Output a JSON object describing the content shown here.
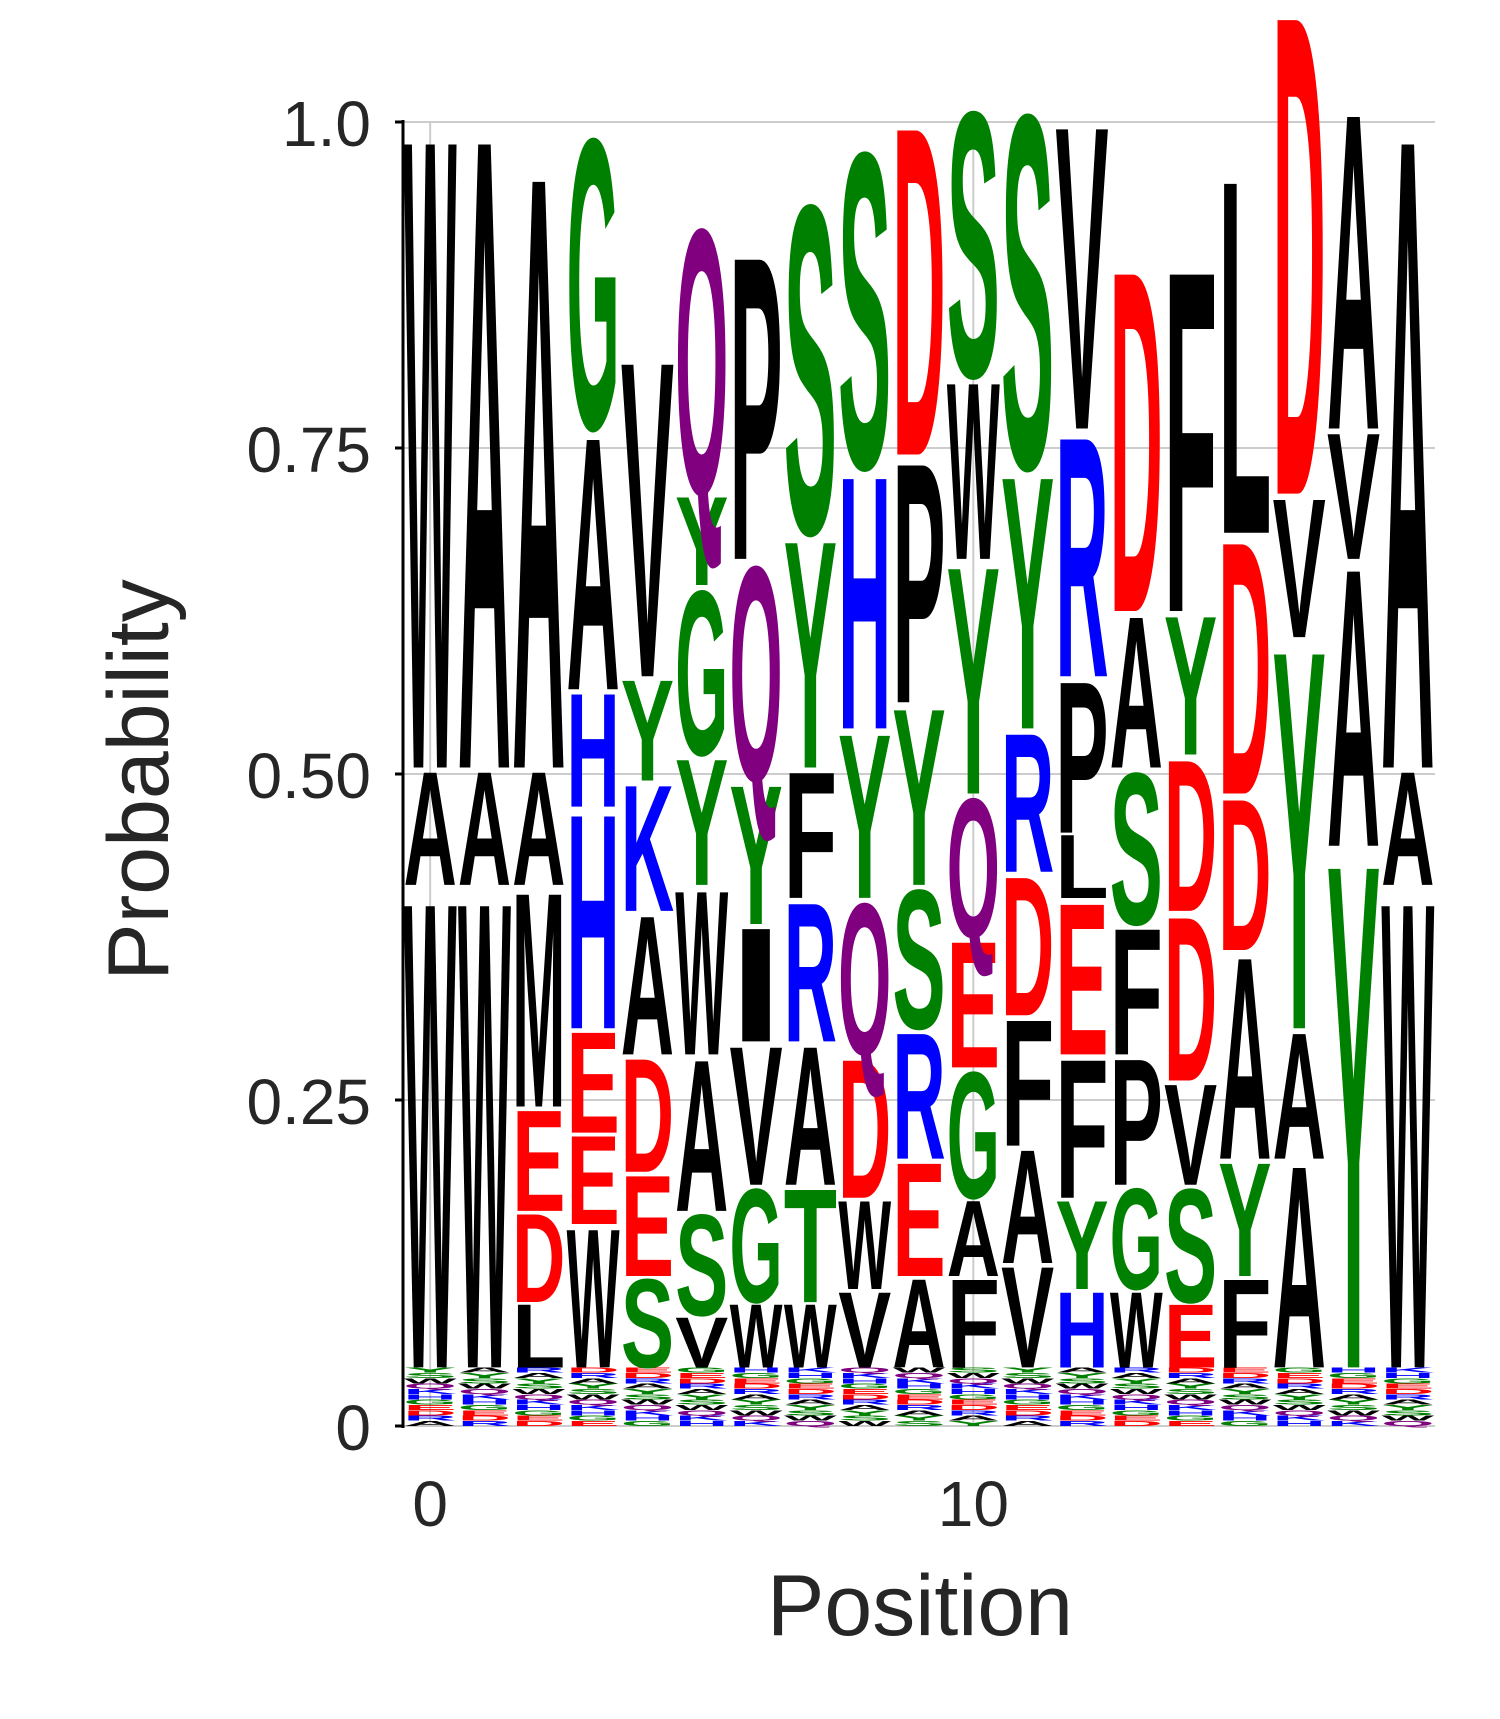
{
  "chart_data": {
    "type": "sequence-logo",
    "xlabel": "Position",
    "ylabel": "Probability",
    "xlim": [
      -0.5,
      18.5
    ],
    "ylim": [
      0,
      1
    ],
    "x_ticks": [
      {
        "value": 0,
        "label": "0"
      },
      {
        "value": 10,
        "label": "10"
      }
    ],
    "y_ticks": [
      {
        "value": 0,
        "label": "0"
      },
      {
        "value": 0.25,
        "label": "0.25"
      },
      {
        "value": 0.5,
        "label": "0.50"
      },
      {
        "value": 0.75,
        "label": "0.75"
      },
      {
        "value": 1.0,
        "label": "1.0"
      }
    ],
    "grid": true,
    "residue_colors": {
      "A": "#000000",
      "V": "#000000",
      "L": "#000000",
      "I": "#000000",
      "P": "#000000",
      "W": "#000000",
      "F": "#000000",
      "M": "#000000",
      "G": "#008000",
      "S": "#008000",
      "T": "#008000",
      "Y": "#008000",
      "C": "#008000",
      "N": "#800080",
      "Q": "#800080",
      "D": "#ff0000",
      "E": "#ff0000",
      "K": "#0000ff",
      "R": "#0000ff",
      "H": "#0000ff"
    },
    "positions": [
      {
        "x": 0,
        "stack": [
          [
            "W",
            0.37
          ],
          [
            "A",
            0.09
          ],
          [
            "W",
            0.5
          ]
        ]
      },
      {
        "x": 1,
        "stack": [
          [
            "W",
            0.37
          ],
          [
            "A",
            0.09
          ],
          [
            "A",
            0.5
          ]
        ]
      },
      {
        "x": 2,
        "stack": [
          [
            "L",
            0.05
          ],
          [
            "D",
            0.07
          ],
          [
            "E",
            0.08
          ],
          [
            "M",
            0.17
          ],
          [
            "A",
            0.09
          ],
          [
            "A",
            0.47
          ]
        ]
      },
      {
        "x": 3,
        "stack": [
          [
            "W",
            0.11
          ],
          [
            "E",
            0.07
          ],
          [
            "E",
            0.08
          ],
          [
            "H",
            0.17
          ],
          [
            "H",
            0.09
          ],
          [
            "A",
            0.2
          ],
          [
            "G",
            0.23
          ]
        ]
      },
      {
        "x": 4,
        "stack": [
          [
            "S",
            0.07
          ],
          [
            "E",
            0.08
          ],
          [
            "D",
            0.09
          ],
          [
            "A",
            0.11
          ],
          [
            "K",
            0.1
          ],
          [
            "Y",
            0.08
          ],
          [
            "V",
            0.25
          ]
        ]
      },
      {
        "x": 5,
        "stack": [
          [
            "V",
            0.04
          ],
          [
            "S",
            0.08
          ],
          [
            "A",
            0.12
          ],
          [
            "W",
            0.13
          ],
          [
            "Y",
            0.1
          ],
          [
            "G",
            0.13
          ],
          [
            "Y",
            0.07
          ],
          [
            "Q",
            0.21
          ]
        ]
      },
      {
        "x": 6,
        "stack": [
          [
            "W",
            0.05
          ],
          [
            "G",
            0.09
          ],
          [
            "V",
            0.11
          ],
          [
            "I",
            0.09
          ],
          [
            "Y",
            0.11
          ],
          [
            "Q",
            0.17
          ],
          [
            "P",
            0.24
          ]
        ]
      },
      {
        "x": 7,
        "stack": [
          [
            "W",
            0.05
          ],
          [
            "T",
            0.09
          ],
          [
            "A",
            0.11
          ],
          [
            "R",
            0.11
          ],
          [
            "F",
            0.1
          ],
          [
            "Y",
            0.18
          ],
          [
            "S",
            0.26
          ]
        ]
      },
      {
        "x": 8,
        "stack": [
          [
            "V",
            0.06
          ],
          [
            "W",
            0.07
          ],
          [
            "D",
            0.11
          ],
          [
            "Q",
            0.12
          ],
          [
            "Y",
            0.13
          ],
          [
            "H",
            0.2
          ],
          [
            "S",
            0.25
          ]
        ]
      },
      {
        "x": 9,
        "stack": [
          [
            "A",
            0.07
          ],
          [
            "E",
            0.09
          ],
          [
            "R",
            0.1
          ],
          [
            "S",
            0.11
          ],
          [
            "Y",
            0.14
          ],
          [
            "P",
            0.19
          ],
          [
            "D",
            0.26
          ]
        ]
      },
      {
        "x": 10,
        "stack": [
          [
            "F",
            0.07
          ],
          [
            "A",
            0.06
          ],
          [
            "G",
            0.1
          ],
          [
            "E",
            0.1
          ],
          [
            "Q",
            0.11
          ],
          [
            "Y",
            0.18
          ],
          [
            "W",
            0.14
          ],
          [
            "S",
            0.21
          ]
        ]
      },
      {
        "x": 11,
        "stack": [
          [
            "V",
            0.08
          ],
          [
            "A",
            0.09
          ],
          [
            "F",
            0.1
          ],
          [
            "D",
            0.11
          ],
          [
            "R",
            0.11
          ],
          [
            "Y",
            0.2
          ],
          [
            "S",
            0.28
          ]
        ]
      },
      {
        "x": 12,
        "stack": [
          [
            "H",
            0.06
          ],
          [
            "Y",
            0.07
          ],
          [
            "F",
            0.11
          ],
          [
            "E",
            0.12
          ],
          [
            "L",
            0.05
          ],
          [
            "P",
            0.12
          ],
          [
            "R",
            0.19
          ],
          [
            "V",
            0.24
          ]
        ]
      },
      {
        "x": 13,
        "stack": [
          [
            "W",
            0.06
          ],
          [
            "G",
            0.08
          ],
          [
            "P",
            0.1
          ],
          [
            "F",
            0.1
          ],
          [
            "S",
            0.12
          ],
          [
            "A",
            0.12
          ],
          [
            "D",
            0.27
          ]
        ]
      },
      {
        "x": 14,
        "stack": [
          [
            "E",
            0.05
          ],
          [
            "S",
            0.09
          ],
          [
            "V",
            0.08
          ],
          [
            "D",
            0.13
          ],
          [
            "D",
            0.12
          ],
          [
            "Y",
            0.11
          ],
          [
            "F",
            0.27
          ]
        ]
      },
      {
        "x": 15,
        "stack": [
          [
            "F",
            0.07
          ],
          [
            "Y",
            0.09
          ],
          [
            "A",
            0.16
          ],
          [
            "D",
            0.12
          ],
          [
            "D",
            0.2
          ],
          [
            "L",
            0.28
          ]
        ]
      },
      {
        "x": 16,
        "stack": [
          [
            "A",
            0.16
          ],
          [
            "A",
            0.1
          ],
          [
            "Y",
            0.3
          ],
          [
            "V",
            0.11
          ],
          [
            "D",
            0.38
          ]
        ]
      },
      {
        "x": 17,
        "stack": [
          [
            "Y",
            0.4
          ],
          [
            "A",
            0.22
          ],
          [
            "V",
            0.1
          ],
          [
            "A",
            0.25
          ]
        ]
      },
      {
        "x": 18,
        "stack": [
          [
            "W",
            0.37
          ],
          [
            "A",
            0.09
          ],
          [
            "A",
            0.5
          ]
        ]
      }
    ],
    "minor_residues": [
      "A",
      "R",
      "D",
      "E",
      "G",
      "H",
      "K",
      "Q",
      "W",
      "S",
      "Y"
    ]
  }
}
